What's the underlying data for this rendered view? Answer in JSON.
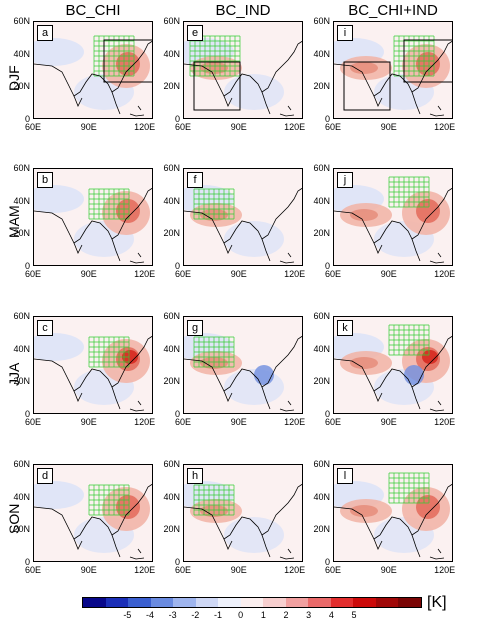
{
  "columns": [
    "BC_CHI",
    "BC_IND",
    "BC_CHI+IND"
  ],
  "rows": [
    "DJF",
    "MAM",
    "JJA",
    "SON"
  ],
  "panel_labels": [
    [
      "a",
      "e",
      "i"
    ],
    [
      "b",
      "f",
      "j"
    ],
    [
      "c",
      "g",
      "k"
    ],
    [
      "d",
      "h",
      "l"
    ]
  ],
  "y_ticks": [
    "60N",
    "40N",
    "20N",
    "0"
  ],
  "x_ticks": [
    "60E",
    "90E",
    "120E"
  ],
  "colorbar": {
    "ticks": [
      "-5",
      "-4",
      "-3",
      "-2",
      "-1",
      "0",
      "1",
      "2",
      "3",
      "4",
      "5"
    ],
    "unit": "[K]",
    "colors": [
      "#08088a",
      "#1b2fb8",
      "#3a5fd0",
      "#6a8be0",
      "#9fb5ee",
      "#cfd8f5",
      "#eef1fb",
      "#fbefef",
      "#f7cfcf",
      "#f1a0a0",
      "#ea6a6a",
      "#e22e2e",
      "#cc0a0a",
      "#a00808",
      "#7a0505"
    ]
  }
}
